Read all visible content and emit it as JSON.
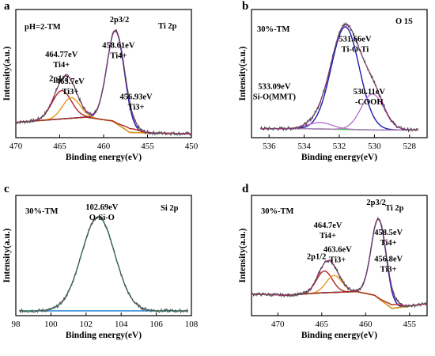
{
  "colors": {
    "raw": "#4a4a4a",
    "envelope": "#cc2a9e",
    "peak_main": "#1c1cb4",
    "peak_red": "#b3261e",
    "peak_orange": "#e69a1f",
    "peak_purple": "#b774c9",
    "background": "#35d635",
    "baseline_blue": "#3b8fd8",
    "fit_green": "#3a9e7a",
    "highlight": "#d21414"
  },
  "chart_data": [
    {
      "panel": "a",
      "type": "line",
      "title": "Ti 2p",
      "sample_label": "pH=2-TM",
      "xlabel": "Binding energy(eV)",
      "ylabel": "Intensity(a.u.)",
      "xlim": [
        470,
        450
      ],
      "ylim": [
        0,
        1
      ],
      "xticks": [
        470,
        465,
        460,
        455,
        450
      ],
      "x_start": 470,
      "x_end": 450,
      "background": [
        [
          470,
          0.12
        ],
        [
          466,
          0.14
        ],
        [
          462,
          0.16
        ],
        [
          459,
          0.13
        ],
        [
          457,
          0.04
        ],
        [
          450,
          0.03
        ]
      ],
      "peaks": [
        {
          "role": "main",
          "label": "2p3/2",
          "center": 458.61,
          "height": 0.72,
          "width": 1.0
        },
        {
          "role": "red",
          "center": 464.77,
          "height": 0.22,
          "width": 1.1
        },
        {
          "role": "orange",
          "center": 463.7,
          "height": 0.16,
          "width": 1.0
        },
        {
          "role": "red",
          "center": 456.93,
          "height": 0.03,
          "width": 0.9
        }
      ],
      "annotations": [
        {
          "text": "2p3/2",
          "x": 458.2,
          "y": 0.9
        },
        {
          "text": "458.61eV",
          "x": 458.3,
          "y": 0.7,
          "sub": "Ti4+"
        },
        {
          "text": "464.77eV",
          "x": 464.8,
          "y": 0.63,
          "sub": "Ti4+"
        },
        {
          "text": "2p1/2",
          "x": 465.1,
          "y": 0.44
        },
        {
          "text": "463.7eV",
          "x": 463.8,
          "y": 0.42,
          "sub": "Ti3+"
        },
        {
          "text": "456.93eV",
          "x": 456.3,
          "y": 0.3,
          "sub": "Ti3+"
        }
      ]
    },
    {
      "panel": "b",
      "type": "line",
      "title": "O 1S",
      "sample_label": "30%-TM",
      "xlabel": "Binding energy(eV)",
      "ylabel": "Intensity(a.u.)",
      "xlim": [
        537,
        527
      ],
      "ylim": [
        0,
        1
      ],
      "xticks": [
        536,
        534,
        532,
        530,
        528
      ],
      "x_start": 536.5,
      "x_end": 527.5,
      "background": [
        [
          536.5,
          0.07
        ],
        [
          534,
          0.07
        ],
        [
          532,
          0.065
        ],
        [
          530,
          0.06
        ],
        [
          527.5,
          0.06
        ]
      ],
      "peaks": [
        {
          "role": "main",
          "center": 531.66,
          "height": 0.8,
          "width": 0.8
        },
        {
          "role": "purple",
          "center": 530.11,
          "height": 0.28,
          "width": 0.65
        },
        {
          "role": "purple",
          "center": 533.09,
          "height": 0.05,
          "width": 0.7
        }
      ],
      "annotations": [
        {
          "text": "531.66eV",
          "x": 531.1,
          "y": 0.75,
          "sub": "Ti-O-Ti"
        },
        {
          "text": "533.09eV",
          "x": 535.7,
          "y": 0.38,
          "sub": "Si-O(MMT)"
        },
        {
          "text": "530.11eV",
          "x": 530.3,
          "y": 0.34,
          "sub": "-COOH"
        }
      ]
    },
    {
      "panel": "c",
      "type": "line",
      "title": "Si 2p",
      "sample_label": "30%-TM",
      "xlabel": "Binding energy(eV)",
      "ylabel": "Intensity(a.u.)",
      "xlim": [
        98,
        108
      ],
      "ylim": [
        0,
        1
      ],
      "xticks": [
        98,
        100,
        102,
        104,
        106,
        108
      ],
      "x_start": 98.2,
      "x_end": 107.8,
      "background": [
        [
          98.2,
          0.04
        ],
        [
          107.8,
          0.04
        ]
      ],
      "peaks": [
        {
          "role": "main",
          "center": 102.69,
          "height": 0.78,
          "width": 0.95
        }
      ],
      "annotations": [
        {
          "text": "102.69eV",
          "x": 102.9,
          "y": 0.88,
          "sub": "O-Si-O"
        }
      ]
    },
    {
      "panel": "d",
      "type": "line",
      "title": "Ti 2p",
      "sample_label": "30%-TM",
      "xlabel": "Binding energy(eV)",
      "ylabel": "Intensity(a.u.)",
      "xlim": [
        473,
        453
      ],
      "ylim": [
        0,
        1
      ],
      "xticks": [
        470,
        465,
        460,
        455
      ],
      "x_start": 473,
      "x_end": 453,
      "background": [
        [
          473,
          0.18
        ],
        [
          469,
          0.17
        ],
        [
          465,
          0.19
        ],
        [
          461,
          0.2
        ],
        [
          459,
          0.17
        ],
        [
          457,
          0.06
        ],
        [
          453,
          0.1
        ]
      ],
      "peaks": [
        {
          "role": "main",
          "label": "2p3/2",
          "center": 458.5,
          "height": 0.66,
          "width": 0.85
        },
        {
          "role": "red",
          "center": 464.7,
          "height": 0.18,
          "width": 0.9
        },
        {
          "role": "orange",
          "center": 463.6,
          "height": 0.14,
          "width": 0.9
        },
        {
          "role": "red",
          "center": 456.8,
          "height": 0.03,
          "width": 0.8
        }
      ],
      "annotations": [
        {
          "text": "2p3/2",
          "x": 458.8,
          "y": 0.92
        },
        {
          "text": "464.7eV",
          "x": 464.3,
          "y": 0.73,
          "sub": "Ti4+"
        },
        {
          "text": "458.5eV",
          "x": 457.4,
          "y": 0.67,
          "sub": "Ti4+"
        },
        {
          "text": "463.6eV",
          "x": 463.2,
          "y": 0.53,
          "sub": "Ti3+"
        },
        {
          "text": "2p1/2",
          "x": 465.6,
          "y": 0.47
        },
        {
          "text": "456.8eV",
          "x": 457.4,
          "y": 0.45,
          "sub": "Ti3+"
        }
      ]
    }
  ]
}
